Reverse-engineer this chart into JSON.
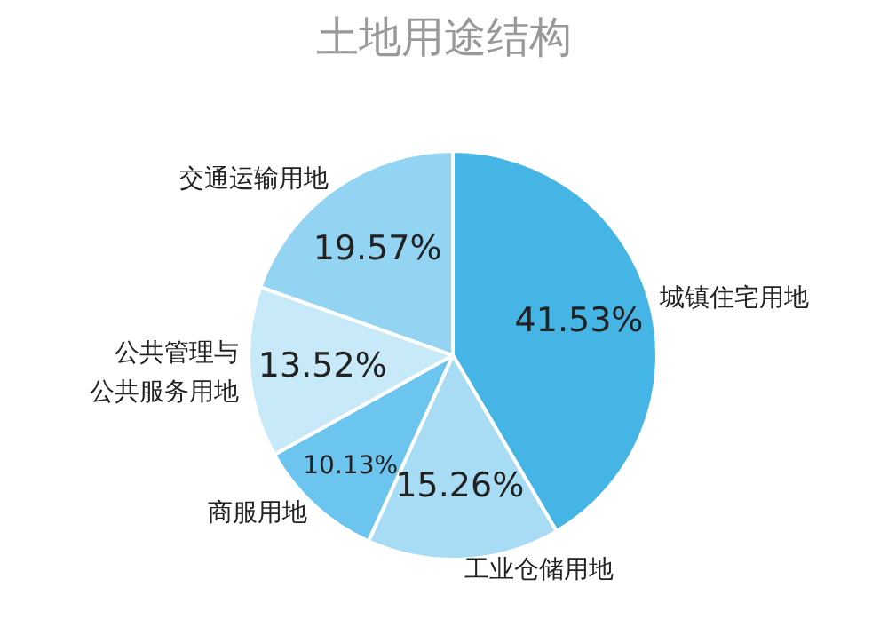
{
  "chart_data": {
    "type": "pie",
    "title": "土地用途结构",
    "categories": [
      "城镇住宅用地",
      "工业仓储用地",
      "商服用地",
      "公共管理与公共服务用地",
      "交通运输用地"
    ],
    "values": [
      41.53,
      15.26,
      10.13,
      13.52,
      19.57
    ],
    "value_labels": [
      "41.53%",
      "15.26%",
      "10.13%",
      "13.52%",
      "19.57%"
    ],
    "colors": [
      "#45b5e6",
      "#a8dcf5",
      "#6cc5ee",
      "#c8e9f8",
      "#93d4f2"
    ],
    "legend": false
  }
}
